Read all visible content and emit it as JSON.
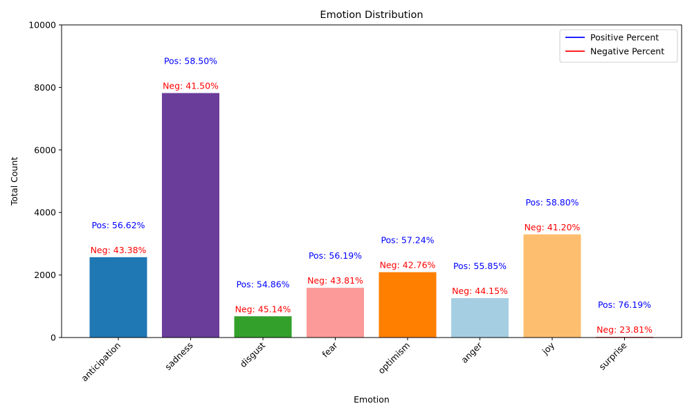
{
  "chart_data": {
    "type": "bar",
    "title": "Emotion Distribution",
    "xlabel": "Emotion",
    "ylabel": "Total Count",
    "ylim": [
      0,
      10000
    ],
    "yticks": [
      0,
      2000,
      4000,
      6000,
      8000,
      10000
    ],
    "grid": false,
    "legend_position": "top-right",
    "categories": [
      "anticipation",
      "sadness",
      "disgust",
      "fear",
      "optimism",
      "anger",
      "joy",
      "surprise"
    ],
    "values": [
      2570,
      7820,
      680,
      1590,
      2090,
      1260,
      3300,
      21
    ],
    "bar_colors": [
      "#1f77b4",
      "#6a3d9a",
      "#33a02c",
      "#fb9a99",
      "#ff7f00",
      "#a6cee3",
      "#fdbf6f",
      "#e31a1c"
    ],
    "pos_labels": [
      "Pos: 56.62%",
      "Pos: 58.50%",
      "Pos: 54.86%",
      "Pos: 56.19%",
      "Pos: 57.24%",
      "Pos: 55.85%",
      "Pos: 58.80%",
      "Pos: 76.19%"
    ],
    "neg_labels": [
      "Neg: 43.38%",
      "Neg: 41.50%",
      "Neg: 45.14%",
      "Neg: 43.81%",
      "Neg: 42.76%",
      "Neg: 44.15%",
      "Neg: 41.20%",
      "Neg: 23.81%"
    ],
    "legend": [
      {
        "label": "Positive Percent",
        "color": "#0000ff"
      },
      {
        "label": "Negative Percent",
        "color": "#ff0000"
      }
    ]
  }
}
